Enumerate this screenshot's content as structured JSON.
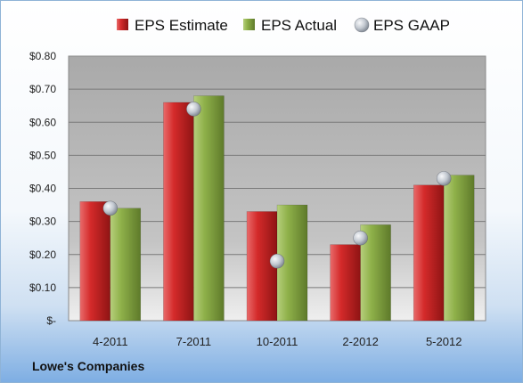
{
  "chart_data": {
    "type": "bar",
    "categories": [
      "4-2011",
      "7-2011",
      "10-2011",
      "2-2012",
      "5-2012"
    ],
    "series": [
      {
        "name": "EPS Estimate",
        "kind": "bar",
        "color": "#d42a2a",
        "values": [
          0.36,
          0.66,
          0.33,
          0.23,
          0.41
        ]
      },
      {
        "name": "EPS Actual",
        "kind": "bar",
        "color": "#8fb14a",
        "values": [
          0.34,
          0.68,
          0.35,
          0.29,
          0.44
        ]
      },
      {
        "name": "EPS GAAP",
        "kind": "marker",
        "color": "#b8bfc8",
        "values": [
          0.34,
          0.64,
          0.18,
          0.25,
          0.43
        ]
      }
    ],
    "ylim": [
      0,
      0.8
    ],
    "y_ticks": [
      {
        "value": 0.0,
        "label": "$-"
      },
      {
        "value": 0.1,
        "label": "$0.10"
      },
      {
        "value": 0.2,
        "label": "$0.20"
      },
      {
        "value": 0.3,
        "label": "$0.30"
      },
      {
        "value": 0.4,
        "label": "$0.40"
      },
      {
        "value": 0.5,
        "label": "$0.50"
      },
      {
        "value": 0.6,
        "label": "$0.60"
      },
      {
        "value": 0.7,
        "label": "$0.70"
      },
      {
        "value": 0.8,
        "label": "$0.80"
      }
    ],
    "grid": true,
    "legend_position": "top"
  },
  "company": "Lowe's Companies"
}
